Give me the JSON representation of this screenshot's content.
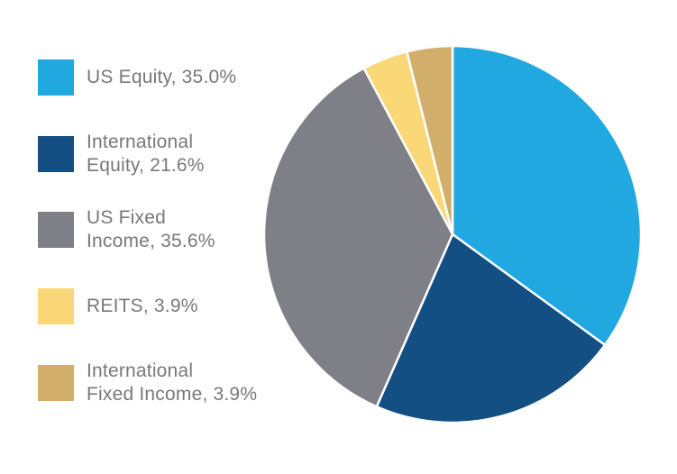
{
  "chart_data": {
    "type": "pie",
    "title": "",
    "start_angle_deg": 0,
    "direction": "clockwise",
    "slices": [
      {
        "label": "US Equity",
        "value": 35.0,
        "color": "#22a8e0",
        "legend_lines": [
          "US Equity, 35.0%"
        ]
      },
      {
        "label": "International Equity",
        "value": 21.6,
        "color": "#134f82",
        "legend_lines": [
          "International",
          "Equity, 21.6%"
        ]
      },
      {
        "label": "US Fixed Income",
        "value": 35.6,
        "color": "#7f8087",
        "legend_lines": [
          "US Fixed",
          "Income, 35.6%"
        ]
      },
      {
        "label": "REITS",
        "value": 3.9,
        "color": "#fad878",
        "legend_lines": [
          "REITS, 3.9%"
        ]
      },
      {
        "label": "International Fixed Income",
        "value": 3.9,
        "color": "#d1ae6a",
        "legend_lines": [
          "International",
          "Fixed Income, 3.9%"
        ]
      }
    ],
    "legend_position": "left"
  }
}
